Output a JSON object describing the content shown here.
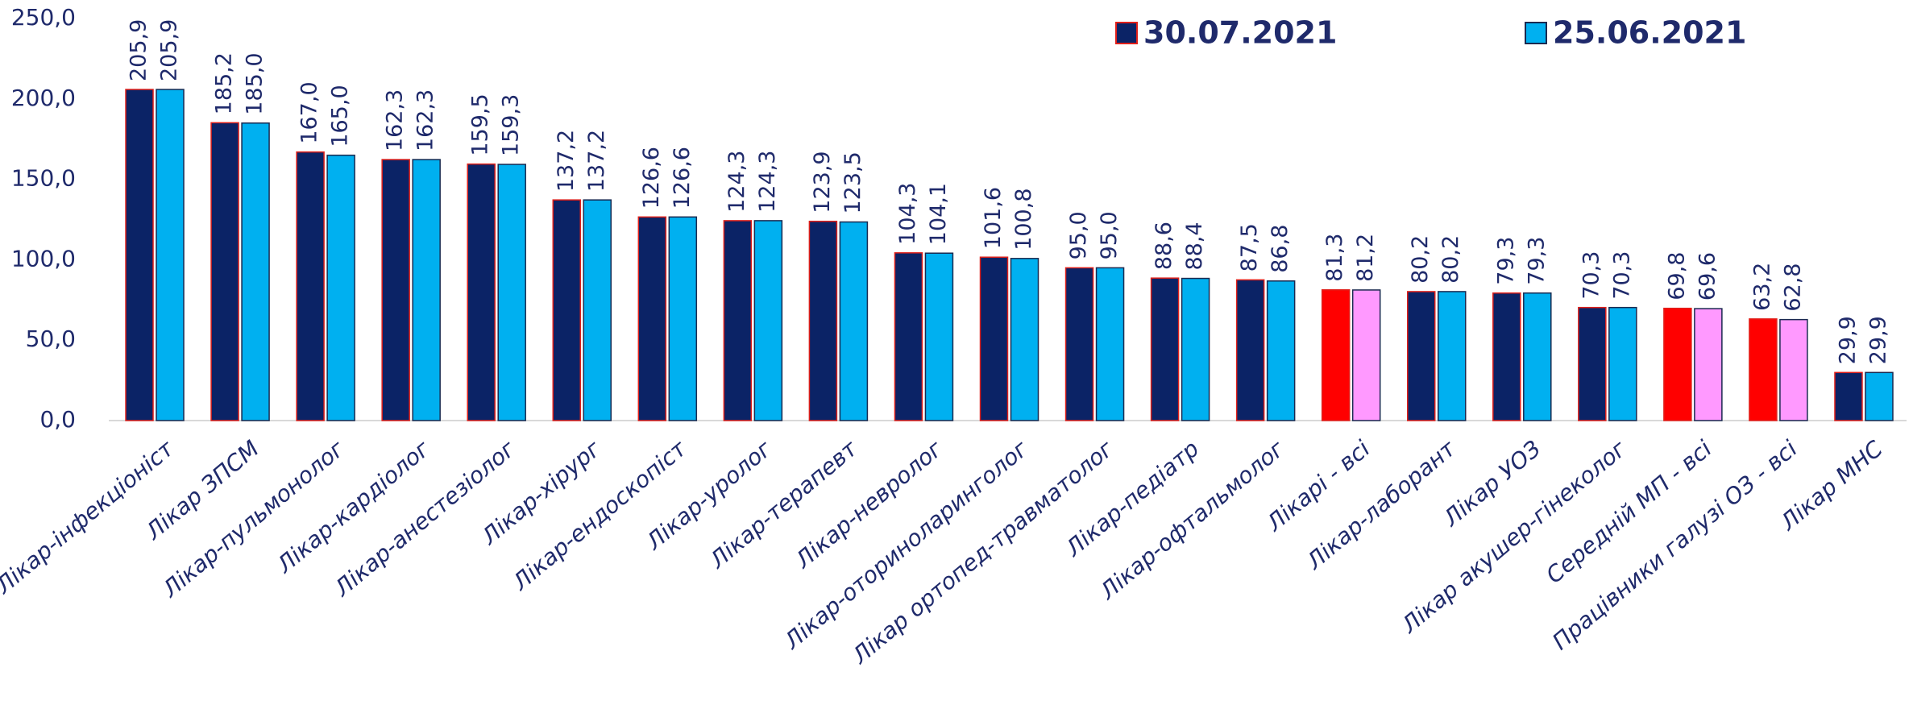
{
  "chart_data": {
    "type": "bar",
    "categories": [
      "Лікар-інфекціоніст",
      "Лікар ЗПСМ",
      "Лікар-пульмонолог",
      "Лікар-кардіолог",
      "Лікар-анестезіолог",
      "Лікар-хірург",
      "Лікар-ендоскопіст",
      "Лікар-уролог",
      "Лікар-терапевт",
      "Лікар-невролог",
      "Лікар-оториноларинголог",
      "Лікар ортопед-травматолог",
      "Лікар-педіатр",
      "Лікар-офтальмолог",
      "Лікарі - всі",
      "Лікар-лаборант",
      "Лікар УОЗ",
      "Лікар акушер-гінеколог",
      "Середній МП - всі",
      "Працівники галузі ОЗ - всі",
      "Лікар МНС"
    ],
    "series": [
      {
        "name": "30.07.2021",
        "color": "#0b2366",
        "edgecolor": "#e0201a",
        "colors": [
          "#0b2366",
          "#0b2366",
          "#0b2366",
          "#0b2366",
          "#0b2366",
          "#0b2366",
          "#0b2366",
          "#0b2366",
          "#0b2366",
          "#0b2366",
          "#0b2366",
          "#0b2366",
          "#0b2366",
          "#0b2366",
          "#ff0000",
          "#0b2366",
          "#0b2366",
          "#0b2366",
          "#ff0000",
          "#ff0000",
          "#0b2366"
        ],
        "values": [
          205.9,
          185.2,
          167.0,
          162.3,
          159.5,
          137.2,
          126.6,
          124.3,
          123.9,
          104.3,
          101.6,
          95.0,
          88.6,
          87.5,
          81.3,
          80.2,
          79.3,
          70.3,
          69.8,
          63.2,
          29.9
        ],
        "value_labels": [
          "205,9",
          "185,2",
          "167,0",
          "162,3",
          "159,5",
          "137,2",
          "126,6",
          "124,3",
          "123,9",
          "104,3",
          "101,6",
          "95,0",
          "88,6",
          "87,5",
          "81,3",
          "80,2",
          "79,3",
          "70,3",
          "69,8",
          "63,2",
          "29,9"
        ]
      },
      {
        "name": "25.06.2021",
        "color": "#00b0f0",
        "edgecolor": "#1a2a50",
        "colors": [
          "#00b0f0",
          "#00b0f0",
          "#00b0f0",
          "#00b0f0",
          "#00b0f0",
          "#00b0f0",
          "#00b0f0",
          "#00b0f0",
          "#00b0f0",
          "#00b0f0",
          "#00b0f0",
          "#00b0f0",
          "#00b0f0",
          "#00b0f0",
          "#ff99ff",
          "#00b0f0",
          "#00b0f0",
          "#00b0f0",
          "#ff99ff",
          "#ff99ff",
          "#00b0f0"
        ],
        "values": [
          205.9,
          185.0,
          165.0,
          162.3,
          159.3,
          137.2,
          126.6,
          124.3,
          123.5,
          104.1,
          100.8,
          95.0,
          88.4,
          86.8,
          81.2,
          80.2,
          79.3,
          70.3,
          69.6,
          62.8,
          29.9
        ],
        "value_labels": [
          "205,9",
          "185,0",
          "165,0",
          "162,3",
          "159,3",
          "137,2",
          "126,6",
          "124,3",
          "123,5",
          "104,1",
          "100,8",
          "95,0",
          "88,4",
          "86,8",
          "81,2",
          "80,2",
          "79,3",
          "70,3",
          "69,6",
          "62,8",
          "29,9"
        ]
      }
    ],
    "ylim": [
      0,
      250
    ],
    "yticks": [
      {
        "value": 0,
        "label": "0,0"
      },
      {
        "value": 50,
        "label": "50,0"
      },
      {
        "value": 100,
        "label": "100,0"
      },
      {
        "value": 150,
        "label": "150,0"
      },
      {
        "value": 200,
        "label": "200,0"
      },
      {
        "value": 250,
        "label": "250,0"
      }
    ],
    "grid": false,
    "legend": "top"
  }
}
